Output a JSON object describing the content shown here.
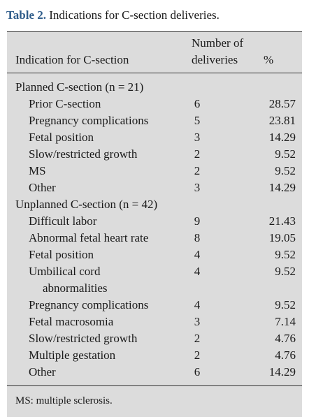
{
  "caption": {
    "label": "Table 2.",
    "text": "Indications for C-section deliveries."
  },
  "header": {
    "col1": "Indication for C-section",
    "col2_line1": "Number of",
    "col2_line2": "deliveries",
    "col3": "%"
  },
  "rows": [
    {
      "type": "group",
      "indication": "Planned C-section (n = 21)",
      "count": "",
      "percent": ""
    },
    {
      "type": "item",
      "indication": "Prior C-section",
      "count": "6",
      "percent": "28.57"
    },
    {
      "type": "item",
      "indication": "Pregnancy complications",
      "count": "5",
      "percent": "23.81"
    },
    {
      "type": "item",
      "indication": "Fetal position",
      "count": "3",
      "percent": "14.29"
    },
    {
      "type": "item",
      "indication": "Slow/restricted growth",
      "count": "2",
      "percent": "9.52"
    },
    {
      "type": "item",
      "indication": "MS",
      "count": "2",
      "percent": "9.52"
    },
    {
      "type": "item",
      "indication": "Other",
      "count": "3",
      "percent": "14.29"
    },
    {
      "type": "group",
      "indication": "Unplanned C-section (n = 42)",
      "count": "",
      "percent": ""
    },
    {
      "type": "item",
      "indication": "Difficult labor",
      "count": "9",
      "percent": "21.43"
    },
    {
      "type": "item",
      "indication": "Abnormal fetal heart rate",
      "count": "8",
      "percent": "19.05"
    },
    {
      "type": "item",
      "indication": "Fetal position",
      "count": "4",
      "percent": "9.52"
    },
    {
      "type": "item",
      "indication": "Umbilical cord",
      "continuation": "abnormalities",
      "count": "4",
      "percent": "9.52"
    },
    {
      "type": "item",
      "indication": "Pregnancy complications",
      "count": "4",
      "percent": "9.52"
    },
    {
      "type": "item",
      "indication": "Fetal macrosomia",
      "count": "3",
      "percent": "7.14"
    },
    {
      "type": "item",
      "indication": "Slow/restricted growth",
      "count": "2",
      "percent": "4.76"
    },
    {
      "type": "item",
      "indication": "Multiple gestation",
      "count": "2",
      "percent": "4.76"
    },
    {
      "type": "item",
      "indication": "Other",
      "count": "6",
      "percent": "14.29"
    }
  ],
  "footnote": "MS: multiple sclerosis."
}
